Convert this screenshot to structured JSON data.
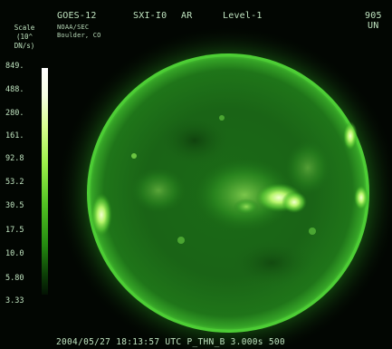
{
  "header": {
    "satellite": "GOES-12",
    "instrument": "SXI-I0",
    "region": "AR",
    "level": "Level-1",
    "agency": "NOAA/SEC",
    "location": "Boulder, CO",
    "wavelength_value": "905",
    "wavelength_unit": "UN"
  },
  "scale": {
    "title_line1": "Scale",
    "title_line2": "(10^",
    "title_line3": "DN/s)",
    "labels": [
      "849.",
      "488.",
      "280.",
      "161.",
      "92.8",
      "53.2",
      "30.5",
      "17.5",
      "10.0",
      "5.80",
      "3.33"
    ]
  },
  "footer": {
    "timestamp": "2004/05/27 18:13:57 UTC",
    "filter": "P_THN_B",
    "exposure": "3.000s",
    "resolution": "500"
  },
  "colors": {
    "background": "#020602",
    "disk": "#1e7a1a",
    "limb": "#52d338",
    "active_bright": "#c8ff8a",
    "text": "#bfe3bf"
  }
}
